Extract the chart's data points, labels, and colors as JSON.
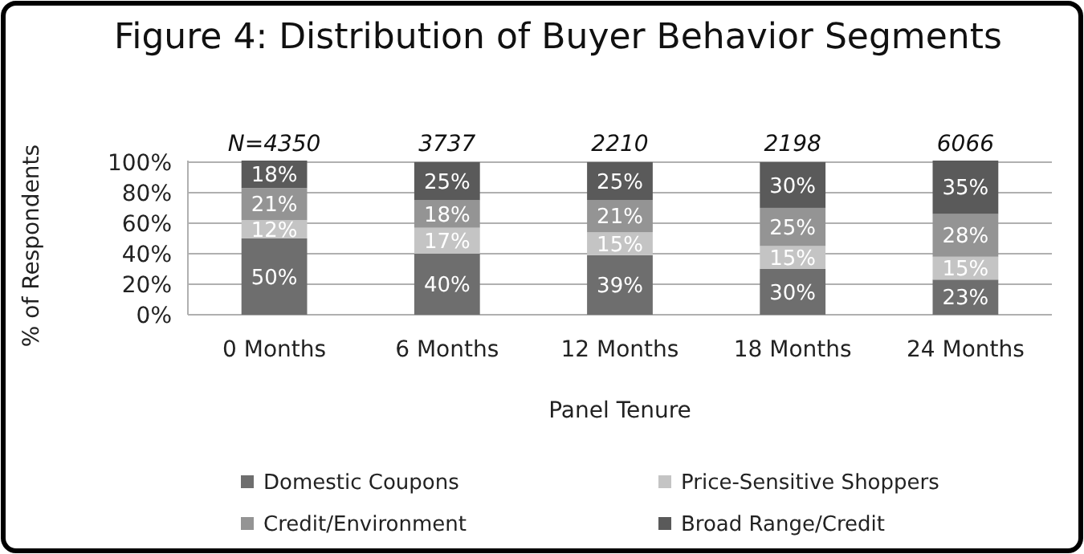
{
  "chart_data": {
    "type": "bar",
    "stacked": true,
    "title": "Figure 4: Distribution of Buyer Behavior Segments",
    "xlabel": "Panel Tenure",
    "ylabel": "% of Respondents",
    "categories": [
      "0 Months",
      "6 Months",
      "12 Months",
      "18 Months",
      "24 Months"
    ],
    "series": [
      {
        "name": "Domestic Coupons",
        "color": "#6e6e6e",
        "values": [
          50,
          40,
          39,
          30,
          23
        ],
        "value_labels": [
          "50%",
          "40%",
          "39%",
          "30%",
          "23%"
        ]
      },
      {
        "name": "Price-Sensitive Shoppers",
        "color": "#c4c4c4",
        "values": [
          12,
          17,
          15,
          15,
          15
        ],
        "value_labels": [
          "12%",
          "17%",
          "15%",
          "15%",
          "15%"
        ]
      },
      {
        "name": "Credit/Environment",
        "color": "#949494",
        "values": [
          21,
          18,
          21,
          25,
          28
        ],
        "value_labels": [
          "21%",
          "18%",
          "21%",
          "25%",
          "28%"
        ]
      },
      {
        "name": "Broad Range/Credit",
        "color": "#5a5a5a",
        "values": [
          18,
          25,
          25,
          30,
          35
        ],
        "value_labels": [
          "18%",
          "25%",
          "25%",
          "30%",
          "35%"
        ]
      }
    ],
    "ylim": [
      0,
      101
    ],
    "yticks": [
      {
        "value": 0,
        "label": "0%"
      },
      {
        "value": 20,
        "label": "20%"
      },
      {
        "value": 40,
        "label": "40%"
      },
      {
        "value": 60,
        "label": "60%"
      },
      {
        "value": 80,
        "label": "80%"
      },
      {
        "value": 100,
        "label": "100%"
      }
    ],
    "grid": "y",
    "legend": "bottom",
    "annotations": [
      {
        "text": "N=4350",
        "x": "0 Months",
        "y": 101
      },
      {
        "text": "3737",
        "x": "6 Months",
        "y": 101
      },
      {
        "text": "2210",
        "x": "12 Months",
        "y": 101
      },
      {
        "text": "2198",
        "x": "18 Months",
        "y": 101
      },
      {
        "text": "6066",
        "x": "24 Months",
        "y": 101
      }
    ]
  }
}
